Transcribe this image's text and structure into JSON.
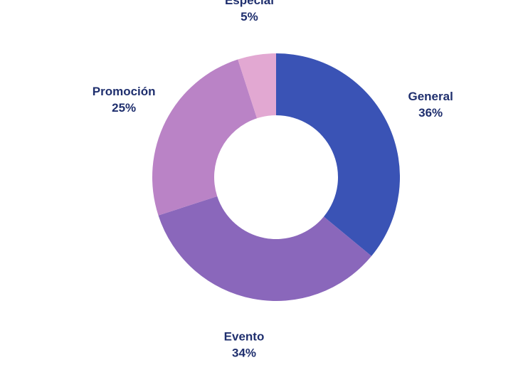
{
  "chart_data": {
    "type": "pie",
    "donut": true,
    "title": "",
    "slices": [
      {
        "label": "General",
        "percent_label": "36%",
        "value": 36,
        "color": "#3a53b5"
      },
      {
        "label": "Evento",
        "percent_label": "34%",
        "value": 34,
        "color": "#8a67bb"
      },
      {
        "label": "Promoción",
        "percent_label": "25%",
        "value": 25,
        "color": "#ba83c6"
      },
      {
        "label": "Especial",
        "percent_label": "5%",
        "value": 5,
        "color": "#e2a8d2"
      }
    ],
    "start": "top",
    "direction": "clockwise",
    "legend": "none"
  }
}
